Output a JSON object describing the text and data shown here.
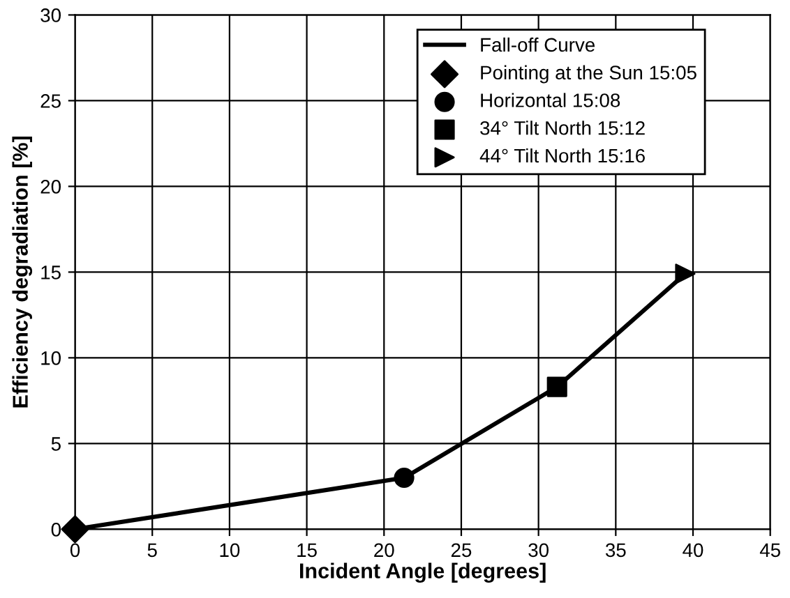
{
  "chart_data": {
    "type": "line",
    "xlabel": "Incident Angle [degrees]",
    "ylabel": "Efficiency degradiation [%]",
    "xlim": [
      0,
      45
    ],
    "xticks": [
      0,
      5,
      10,
      15,
      20,
      25,
      30,
      35,
      40,
      45
    ],
    "ylim": [
      0,
      30
    ],
    "yticks": [
      0,
      5,
      10,
      15,
      20,
      25,
      30
    ],
    "grid": true,
    "legend": "top right",
    "series": [
      {
        "name": "Fall-off Curve",
        "color": "#000000",
        "marker": "none",
        "line_style": "solid",
        "x": [
          0,
          21.3,
          31.2,
          39.5
        ],
        "values": [
          0,
          3.0,
          8.3,
          14.9
        ]
      },
      {
        "name": "Pointing at the Sun 15:05",
        "type": "scatter",
        "color": "#000000",
        "marker": "diamond",
        "x": [
          0
        ],
        "values": [
          0
        ]
      },
      {
        "name": "Horizontal 15:08",
        "type": "scatter",
        "color": "#000000",
        "marker": "circle",
        "x": [
          21.3
        ],
        "values": [
          3.0
        ]
      },
      {
        "name": "34° Tilt North 15:12",
        "type": "scatter",
        "color": "#000000",
        "marker": "square",
        "x": [
          31.2
        ],
        "values": [
          8.3
        ]
      },
      {
        "name": "44° Tilt North 15:16",
        "type": "scatter",
        "color": "#000000",
        "marker": "triangle",
        "x": [
          39.5
        ],
        "values": [
          14.9
        ]
      }
    ]
  }
}
